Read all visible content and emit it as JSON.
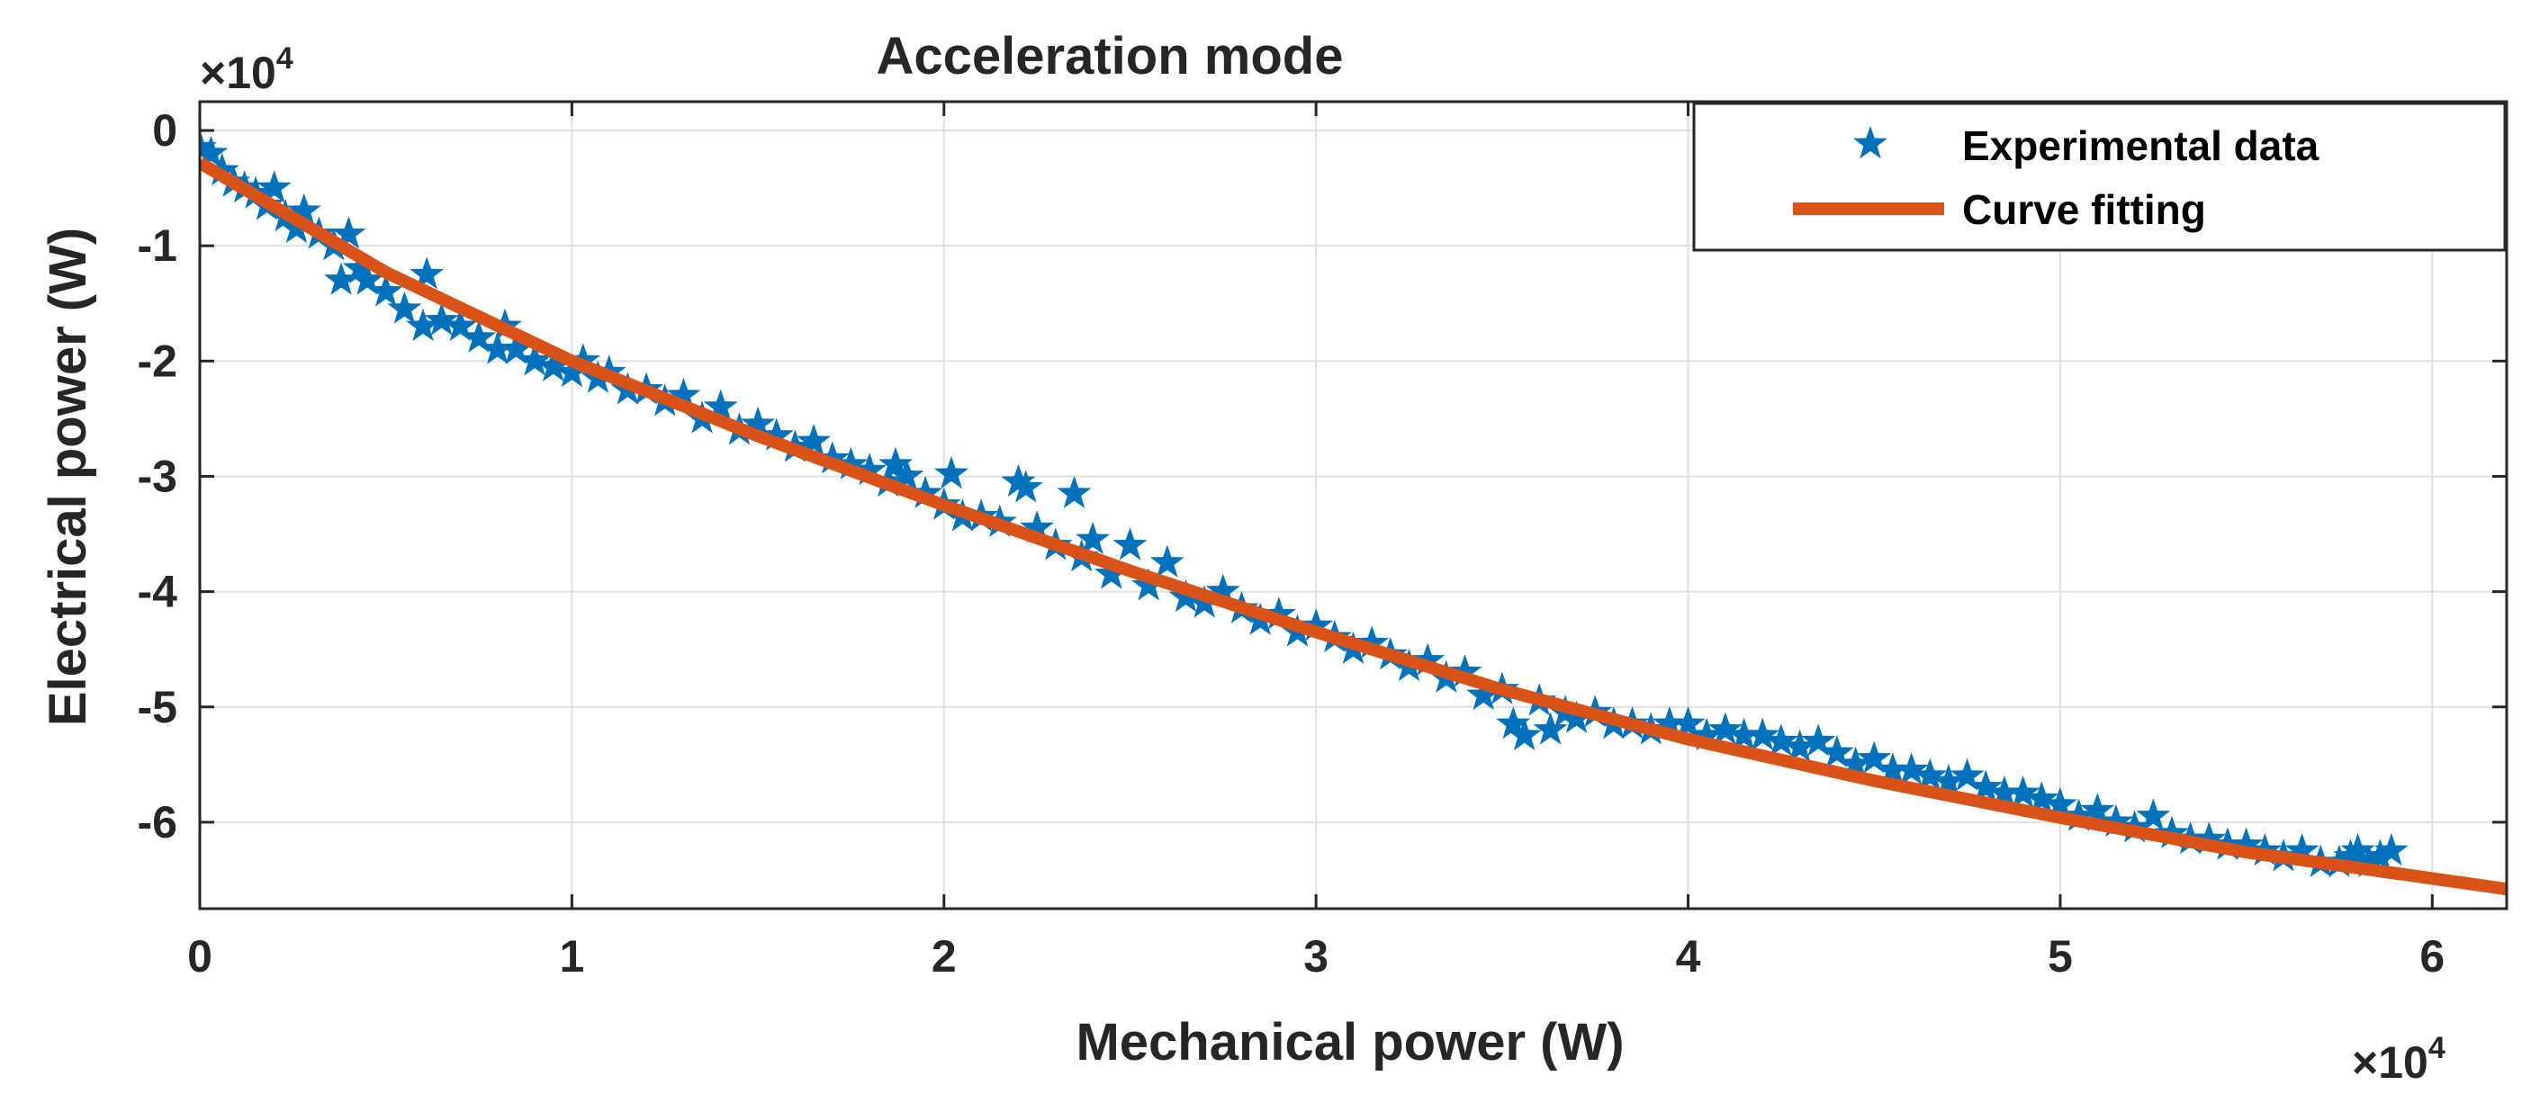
{
  "chart_data": {
    "type": "scatter",
    "title": "Acceleration mode",
    "xlabel": "Mechanical power (W)",
    "ylabel": "Electrical power (W)",
    "x_exponent_label": "×10",
    "x_exponent_power": "4",
    "y_exponent_label": "×10",
    "y_exponent_power": "4",
    "xlim": [
      0,
      62000
    ],
    "ylim": [
      -67500,
      2500
    ],
    "xticks": [
      0,
      10000,
      20000,
      30000,
      40000,
      50000,
      60000
    ],
    "xtick_labels": [
      "0",
      "1",
      "2",
      "3",
      "4",
      "5",
      "6"
    ],
    "yticks": [
      0,
      -10000,
      -20000,
      -30000,
      -40000,
      -50000,
      -60000
    ],
    "ytick_labels": [
      "0",
      "-1",
      "-2",
      "-3",
      "-4",
      "-5",
      "-6"
    ],
    "grid": true,
    "legend_position": "top-right",
    "series": [
      {
        "name": "Experimental data",
        "kind": "scatter",
        "marker": "star",
        "color": "#0072BD",
        "points": [
          [
            0,
            -1500
          ],
          [
            300,
            -2000
          ],
          [
            600,
            -3500
          ],
          [
            900,
            -4500
          ],
          [
            1200,
            -5000
          ],
          [
            1500,
            -5500
          ],
          [
            1800,
            -6500
          ],
          [
            2000,
            -5000
          ],
          [
            2300,
            -7500
          ],
          [
            2600,
            -8500
          ],
          [
            2800,
            -7000
          ],
          [
            3200,
            -9000
          ],
          [
            3600,
            -10000
          ],
          [
            3800,
            -13000
          ],
          [
            4000,
            -9000
          ],
          [
            4300,
            -12000
          ],
          [
            4500,
            -13000
          ],
          [
            5000,
            -14000
          ],
          [
            5500,
            -15500
          ],
          [
            6000,
            -17000
          ],
          [
            6100,
            -12500
          ],
          [
            6500,
            -16500
          ],
          [
            7000,
            -17000
          ],
          [
            7500,
            -18000
          ],
          [
            8000,
            -19000
          ],
          [
            8200,
            -17000
          ],
          [
            8500,
            -19000
          ],
          [
            9000,
            -20000
          ],
          [
            9500,
            -20500
          ],
          [
            10000,
            -21000
          ],
          [
            10300,
            -20000
          ],
          [
            10700,
            -21500
          ],
          [
            11000,
            -21000
          ],
          [
            11500,
            -22500
          ],
          [
            12000,
            -22500
          ],
          [
            12500,
            -23500
          ],
          [
            13000,
            -23000
          ],
          [
            13500,
            -25000
          ],
          [
            14000,
            -24000
          ],
          [
            14500,
            -26000
          ],
          [
            15000,
            -25500
          ],
          [
            15500,
            -26500
          ],
          [
            16000,
            -27500
          ],
          [
            16500,
            -27000
          ],
          [
            17000,
            -28500
          ],
          [
            17500,
            -29000
          ],
          [
            18000,
            -29500
          ],
          [
            18500,
            -30500
          ],
          [
            18700,
            -29000
          ],
          [
            19000,
            -30000
          ],
          [
            19500,
            -31500
          ],
          [
            20000,
            -32500
          ],
          [
            20200,
            -29800
          ],
          [
            20500,
            -33500
          ],
          [
            21000,
            -33500
          ],
          [
            21500,
            -34000
          ],
          [
            22000,
            -30500
          ],
          [
            22200,
            -31000
          ],
          [
            22500,
            -34500
          ],
          [
            23000,
            -36000
          ],
          [
            23500,
            -31500
          ],
          [
            23700,
            -37000
          ],
          [
            24000,
            -35500
          ],
          [
            24500,
            -38500
          ],
          [
            25000,
            -36000
          ],
          [
            25500,
            -39500
          ],
          [
            26000,
            -37500
          ],
          [
            26500,
            -40500
          ],
          [
            27000,
            -41000
          ],
          [
            27500,
            -40000
          ],
          [
            28000,
            -41500
          ],
          [
            28500,
            -42500
          ],
          [
            29000,
            -42000
          ],
          [
            29500,
            -43500
          ],
          [
            30000,
            -43000
          ],
          [
            30500,
            -44000
          ],
          [
            31000,
            -45000
          ],
          [
            31500,
            -44500
          ],
          [
            32000,
            -45500
          ],
          [
            32500,
            -46500
          ],
          [
            33000,
            -46000
          ],
          [
            33500,
            -47500
          ],
          [
            34000,
            -47000
          ],
          [
            34500,
            -49000
          ],
          [
            35000,
            -48500
          ],
          [
            35300,
            -51500
          ],
          [
            35600,
            -52500
          ],
          [
            36000,
            -49500
          ],
          [
            36300,
            -52000
          ],
          [
            36700,
            -50500
          ],
          [
            37000,
            -51000
          ],
          [
            37500,
            -50500
          ],
          [
            38000,
            -51500
          ],
          [
            38500,
            -51500
          ],
          [
            39000,
            -52000
          ],
          [
            39500,
            -51500
          ],
          [
            40000,
            -51500
          ],
          [
            40500,
            -52500
          ],
          [
            41000,
            -52000
          ],
          [
            41500,
            -52500
          ],
          [
            42000,
            -52500
          ],
          [
            42500,
            -53000
          ],
          [
            43000,
            -53500
          ],
          [
            43500,
            -53000
          ],
          [
            44000,
            -54000
          ],
          [
            44500,
            -55000
          ],
          [
            45000,
            -54500
          ],
          [
            45500,
            -55500
          ],
          [
            46000,
            -55500
          ],
          [
            46500,
            -56000
          ],
          [
            47000,
            -56500
          ],
          [
            47500,
            -56000
          ],
          [
            48000,
            -57000
          ],
          [
            48500,
            -57500
          ],
          [
            49000,
            -57500
          ],
          [
            49500,
            -58000
          ],
          [
            50000,
            -58500
          ],
          [
            50500,
            -59500
          ],
          [
            51000,
            -59000
          ],
          [
            51500,
            -60000
          ],
          [
            52000,
            -60500
          ],
          [
            52500,
            -59500
          ],
          [
            53000,
            -61000
          ],
          [
            53500,
            -61500
          ],
          [
            54000,
            -61500
          ],
          [
            54500,
            -62000
          ],
          [
            55000,
            -62000
          ],
          [
            55500,
            -62500
          ],
          [
            56000,
            -63000
          ],
          [
            56500,
            -62500
          ],
          [
            57000,
            -63500
          ],
          [
            57500,
            -63500
          ],
          [
            57800,
            -63000
          ],
          [
            58000,
            -62500
          ],
          [
            58300,
            -63500
          ],
          [
            58600,
            -63000
          ],
          [
            58900,
            -62500
          ]
        ]
      },
      {
        "name": "Curve fitting",
        "kind": "line",
        "color": "#D95319",
        "points": [
          [
            0,
            -2800
          ],
          [
            5000,
            -12300
          ],
          [
            10000,
            -20000
          ],
          [
            15000,
            -26500
          ],
          [
            20000,
            -32500
          ],
          [
            25000,
            -38200
          ],
          [
            30000,
            -43500
          ],
          [
            35000,
            -48500
          ],
          [
            40000,
            -52800
          ],
          [
            45000,
            -56400
          ],
          [
            50000,
            -59600
          ],
          [
            55000,
            -62600
          ],
          [
            62000,
            -65800
          ]
        ]
      }
    ]
  }
}
